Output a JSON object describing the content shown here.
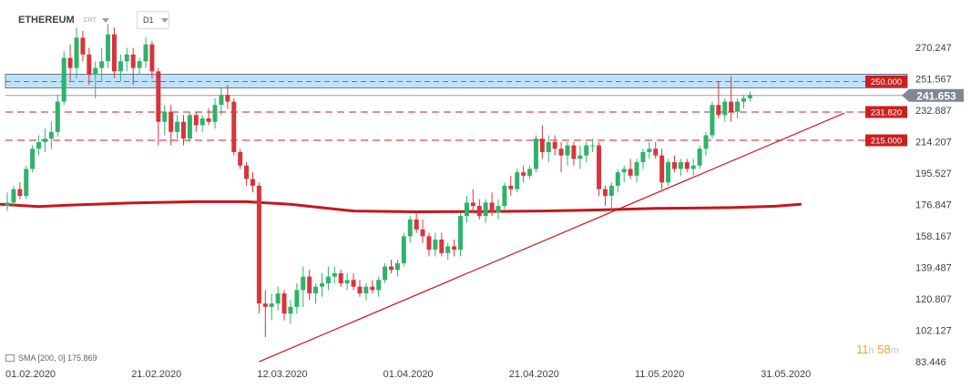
{
  "header": {
    "symbol": "ETHEREUM",
    "badge": "CRT",
    "timeframe": "D1"
  },
  "indicator_legend": "SMA [200, 0] 175.869",
  "timer": {
    "hours": "11",
    "hours_unit": "h",
    "minutes": "58",
    "minutes_unit": "m"
  },
  "colors": {
    "bull": "#2fb26b",
    "bear": "#d9343b",
    "sma": "#c8161d",
    "zone": "#a9d8f5",
    "level_red": "#cc1f1f",
    "current_price_bg": "#7f8792"
  },
  "chart_data": {
    "type": "candlestick",
    "ylim": [
      83.446,
      281.5
    ],
    "y_ticks": [
      "270.247",
      "251.567",
      "232.887",
      "214.207",
      "195.527",
      "176.847",
      "158.167",
      "139.487",
      "120.807",
      "102.127",
      "83.446"
    ],
    "x_ticks": [
      {
        "label": "01.02.2020",
        "index": 0
      },
      {
        "label": "21.02.2020",
        "index": 20
      },
      {
        "label": "12.03.2020",
        "index": 40
      },
      {
        "label": "01.04.2020",
        "index": 60
      },
      {
        "label": "21.04.2020",
        "index": 80
      },
      {
        "label": "11.05.2020",
        "index": 100
      },
      {
        "label": "31.05.2020",
        "index": 120
      }
    ],
    "current_price": "241.653",
    "levels": [
      {
        "value": 250,
        "label": "250.000",
        "style": "zone",
        "zone": [
          246.2,
          254.3
        ]
      },
      {
        "value": 231.82,
        "label": "231.820",
        "style": "dashed"
      },
      {
        "value": 215,
        "label": "215.000",
        "style": "dashed"
      }
    ],
    "trendline": {
      "from": {
        "index": 40,
        "value": 83.4
      },
      "to": {
        "index": 133,
        "value": 231.2
      }
    },
    "sma200": [
      [
        -1,
        177.0
      ],
      [
        5,
        175.6
      ],
      [
        10,
        176.5
      ],
      [
        20,
        177.8
      ],
      [
        30,
        178.5
      ],
      [
        38,
        178.5
      ],
      [
        45,
        177.0
      ],
      [
        55,
        173.0
      ],
      [
        65,
        172.5
      ],
      [
        75,
        172.7
      ],
      [
        85,
        173.0
      ],
      [
        95,
        173.7
      ],
      [
        103,
        174.5
      ],
      [
        115,
        175.0
      ],
      [
        122,
        175.8
      ],
      [
        126,
        177.0
      ]
    ],
    "candles": [
      {
        "o": 176,
        "h": 184,
        "l": 173,
        "c": 178
      },
      {
        "o": 178,
        "h": 188,
        "l": 176,
        "c": 186
      },
      {
        "o": 186,
        "h": 190,
        "l": 180,
        "c": 182
      },
      {
        "o": 182,
        "h": 200,
        "l": 180,
        "c": 198
      },
      {
        "o": 198,
        "h": 212,
        "l": 196,
        "c": 210
      },
      {
        "o": 210,
        "h": 218,
        "l": 206,
        "c": 214
      },
      {
        "o": 214,
        "h": 222,
        "l": 208,
        "c": 216
      },
      {
        "o": 216,
        "h": 226,
        "l": 210,
        "c": 220
      },
      {
        "o": 220,
        "h": 242,
        "l": 217,
        "c": 238
      },
      {
        "o": 238,
        "h": 268,
        "l": 236,
        "c": 264
      },
      {
        "o": 264,
        "h": 272,
        "l": 250,
        "c": 258
      },
      {
        "o": 258,
        "h": 282,
        "l": 252,
        "c": 276
      },
      {
        "o": 276,
        "h": 280,
        "l": 262,
        "c": 266
      },
      {
        "o": 266,
        "h": 270,
        "l": 248,
        "c": 254
      },
      {
        "o": 254,
        "h": 262,
        "l": 240,
        "c": 258
      },
      {
        "o": 258,
        "h": 270,
        "l": 250,
        "c": 262
      },
      {
        "o": 262,
        "h": 284,
        "l": 258,
        "c": 278
      },
      {
        "o": 278,
        "h": 282,
        "l": 252,
        "c": 256
      },
      {
        "o": 256,
        "h": 266,
        "l": 250,
        "c": 262
      },
      {
        "o": 262,
        "h": 270,
        "l": 256,
        "c": 266
      },
      {
        "o": 266,
        "h": 270,
        "l": 248,
        "c": 258
      },
      {
        "o": 258,
        "h": 264,
        "l": 254,
        "c": 262
      },
      {
        "o": 262,
        "h": 276,
        "l": 258,
        "c": 272
      },
      {
        "o": 272,
        "h": 274,
        "l": 252,
        "c": 256
      },
      {
        "o": 256,
        "h": 258,
        "l": 212,
        "c": 226
      },
      {
        "o": 226,
        "h": 236,
        "l": 218,
        "c": 232
      },
      {
        "o": 232,
        "h": 236,
        "l": 212,
        "c": 220
      },
      {
        "o": 220,
        "h": 230,
        "l": 216,
        "c": 226
      },
      {
        "o": 226,
        "h": 230,
        "l": 212,
        "c": 216
      },
      {
        "o": 216,
        "h": 232,
        "l": 214,
        "c": 230
      },
      {
        "o": 230,
        "h": 232,
        "l": 220,
        "c": 224
      },
      {
        "o": 224,
        "h": 230,
        "l": 220,
        "c": 228
      },
      {
        "o": 228,
        "h": 234,
        "l": 224,
        "c": 226
      },
      {
        "o": 226,
        "h": 240,
        "l": 222,
        "c": 236
      },
      {
        "o": 236,
        "h": 246,
        "l": 230,
        "c": 242
      },
      {
        "o": 242,
        "h": 248,
        "l": 234,
        "c": 238
      },
      {
        "o": 238,
        "h": 240,
        "l": 206,
        "c": 208
      },
      {
        "o": 208,
        "h": 210,
        "l": 198,
        "c": 200
      },
      {
        "o": 200,
        "h": 202,
        "l": 188,
        "c": 192
      },
      {
        "o": 192,
        "h": 196,
        "l": 184,
        "c": 188
      },
      {
        "o": 188,
        "h": 190,
        "l": 112,
        "c": 118
      },
      {
        "o": 118,
        "h": 126,
        "l": 98,
        "c": 116
      },
      {
        "o": 116,
        "h": 124,
        "l": 108,
        "c": 118
      },
      {
        "o": 118,
        "h": 128,
        "l": 114,
        "c": 124
      },
      {
        "o": 124,
        "h": 126,
        "l": 108,
        "c": 112
      },
      {
        "o": 112,
        "h": 120,
        "l": 106,
        "c": 116
      },
      {
        "o": 116,
        "h": 130,
        "l": 112,
        "c": 126
      },
      {
        "o": 126,
        "h": 140,
        "l": 116,
        "c": 134
      },
      {
        "o": 134,
        "h": 138,
        "l": 120,
        "c": 124
      },
      {
        "o": 124,
        "h": 130,
        "l": 118,
        "c": 128
      },
      {
        "o": 128,
        "h": 136,
        "l": 122,
        "c": 130
      },
      {
        "o": 130,
        "h": 140,
        "l": 126,
        "c": 134
      },
      {
        "o": 134,
        "h": 140,
        "l": 130,
        "c": 136
      },
      {
        "o": 136,
        "h": 138,
        "l": 128,
        "c": 130
      },
      {
        "o": 130,
        "h": 136,
        "l": 126,
        "c": 132
      },
      {
        "o": 132,
        "h": 136,
        "l": 126,
        "c": 128
      },
      {
        "o": 128,
        "h": 132,
        "l": 122,
        "c": 124
      },
      {
        "o": 124,
        "h": 130,
        "l": 120,
        "c": 128
      },
      {
        "o": 128,
        "h": 132,
        "l": 124,
        "c": 126
      },
      {
        "o": 126,
        "h": 134,
        "l": 122,
        "c": 132
      },
      {
        "o": 132,
        "h": 142,
        "l": 130,
        "c": 140
      },
      {
        "o": 140,
        "h": 144,
        "l": 136,
        "c": 138
      },
      {
        "o": 138,
        "h": 144,
        "l": 134,
        "c": 142
      },
      {
        "o": 142,
        "h": 160,
        "l": 140,
        "c": 158
      },
      {
        "o": 158,
        "h": 170,
        "l": 154,
        "c": 168
      },
      {
        "o": 168,
        "h": 172,
        "l": 160,
        "c": 162
      },
      {
        "o": 162,
        "h": 168,
        "l": 154,
        "c": 158
      },
      {
        "o": 158,
        "h": 160,
        "l": 146,
        "c": 150
      },
      {
        "o": 150,
        "h": 160,
        "l": 146,
        "c": 156
      },
      {
        "o": 156,
        "h": 160,
        "l": 146,
        "c": 148
      },
      {
        "o": 148,
        "h": 154,
        "l": 144,
        "c": 152
      },
      {
        "o": 152,
        "h": 156,
        "l": 146,
        "c": 150
      },
      {
        "o": 150,
        "h": 172,
        "l": 146,
        "c": 170
      },
      {
        "o": 170,
        "h": 182,
        "l": 166,
        "c": 178
      },
      {
        "o": 178,
        "h": 186,
        "l": 172,
        "c": 176
      },
      {
        "o": 176,
        "h": 180,
        "l": 168,
        "c": 170
      },
      {
        "o": 170,
        "h": 180,
        "l": 166,
        "c": 178
      },
      {
        "o": 178,
        "h": 184,
        "l": 170,
        "c": 172
      },
      {
        "o": 172,
        "h": 180,
        "l": 168,
        "c": 176
      },
      {
        "o": 176,
        "h": 190,
        "l": 174,
        "c": 188
      },
      {
        "o": 188,
        "h": 194,
        "l": 182,
        "c": 186
      },
      {
        "o": 186,
        "h": 198,
        "l": 184,
        "c": 196
      },
      {
        "o": 196,
        "h": 200,
        "l": 190,
        "c": 194
      },
      {
        "o": 194,
        "h": 200,
        "l": 192,
        "c": 198
      },
      {
        "o": 198,
        "h": 218,
        "l": 196,
        "c": 216
      },
      {
        "o": 216,
        "h": 224,
        "l": 204,
        "c": 208
      },
      {
        "o": 208,
        "h": 218,
        "l": 202,
        "c": 214
      },
      {
        "o": 214,
        "h": 218,
        "l": 206,
        "c": 210
      },
      {
        "o": 210,
        "h": 214,
        "l": 196,
        "c": 206
      },
      {
        "o": 206,
        "h": 214,
        "l": 200,
        "c": 212
      },
      {
        "o": 212,
        "h": 214,
        "l": 200,
        "c": 204
      },
      {
        "o": 204,
        "h": 212,
        "l": 198,
        "c": 206
      },
      {
        "o": 206,
        "h": 214,
        "l": 202,
        "c": 212
      },
      {
        "o": 212,
        "h": 216,
        "l": 208,
        "c": 212
      },
      {
        "o": 212,
        "h": 214,
        "l": 182,
        "c": 186
      },
      {
        "o": 186,
        "h": 188,
        "l": 176,
        "c": 182
      },
      {
        "o": 182,
        "h": 190,
        "l": 172,
        "c": 188
      },
      {
        "o": 188,
        "h": 198,
        "l": 184,
        "c": 196
      },
      {
        "o": 196,
        "h": 200,
        "l": 190,
        "c": 198
      },
      {
        "o": 198,
        "h": 204,
        "l": 192,
        "c": 194
      },
      {
        "o": 194,
        "h": 204,
        "l": 190,
        "c": 202
      },
      {
        "o": 202,
        "h": 210,
        "l": 198,
        "c": 208
      },
      {
        "o": 208,
        "h": 214,
        "l": 204,
        "c": 210
      },
      {
        "o": 210,
        "h": 214,
        "l": 204,
        "c": 206
      },
      {
        "o": 206,
        "h": 210,
        "l": 186,
        "c": 190
      },
      {
        "o": 190,
        "h": 204,
        "l": 188,
        "c": 202
      },
      {
        "o": 202,
        "h": 206,
        "l": 196,
        "c": 198
      },
      {
        "o": 198,
        "h": 204,
        "l": 194,
        "c": 202
      },
      {
        "o": 202,
        "h": 204,
        "l": 196,
        "c": 198
      },
      {
        "o": 198,
        "h": 204,
        "l": 194,
        "c": 200
      },
      {
        "o": 200,
        "h": 212,
        "l": 198,
        "c": 210
      },
      {
        "o": 210,
        "h": 220,
        "l": 206,
        "c": 218
      },
      {
        "o": 218,
        "h": 238,
        "l": 216,
        "c": 236
      },
      {
        "o": 236,
        "h": 250,
        "l": 228,
        "c": 230
      },
      {
        "o": 230,
        "h": 240,
        "l": 226,
        "c": 238
      },
      {
        "o": 238,
        "h": 253,
        "l": 226,
        "c": 232
      },
      {
        "o": 232,
        "h": 240,
        "l": 228,
        "c": 238
      },
      {
        "o": 238,
        "h": 242,
        "l": 234,
        "c": 240
      },
      {
        "o": 240,
        "h": 244,
        "l": 238,
        "c": 242
      }
    ]
  }
}
